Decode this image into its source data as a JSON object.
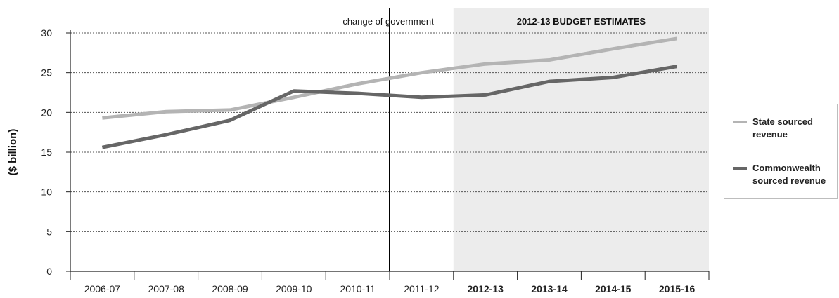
{
  "chart_data": {
    "type": "line",
    "ylabel": "($ billion)",
    "xlabel": "",
    "ylim": [
      0,
      30
    ],
    "yticks": [
      0,
      5,
      10,
      15,
      20,
      25,
      30
    ],
    "grid": "horizontal dotted",
    "categories": [
      "2006-07",
      "2007-08",
      "2008-09",
      "2009-10",
      "2010-11",
      "2011-12",
      "2012-13",
      "2013-14",
      "2014-15",
      "2015-16"
    ],
    "bold_categories": [
      "2012-13",
      "2013-14",
      "2014-15",
      "2015-16"
    ],
    "series": [
      {
        "name": "State sourced revenue",
        "color": "#b4b4b4",
        "values": [
          19.3,
          20.1,
          20.3,
          21.9,
          23.6,
          25.0,
          26.1,
          26.6,
          28.0,
          29.3
        ]
      },
      {
        "name": "Commonwealth sourced revenue",
        "color": "#666666",
        "values": [
          15.6,
          17.2,
          19.0,
          22.7,
          22.4,
          21.9,
          22.2,
          23.9,
          24.4,
          25.8
        ]
      }
    ],
    "annotations": {
      "change_line_label": "change of government",
      "shaded_region_label": "2012-13 BUDGET ESTIMATES",
      "shaded_from_category": "2012-13"
    },
    "legend": {
      "position": "right",
      "items": [
        {
          "line1": "State sourced",
          "line2": "revenue",
          "color": "#b4b4b4"
        },
        {
          "line1": "Commonwealth",
          "line2": "sourced revenue",
          "color": "#666666"
        }
      ]
    },
    "colors": {
      "shade": "#ececec",
      "axis": "#222222",
      "grid": "#555555"
    }
  }
}
